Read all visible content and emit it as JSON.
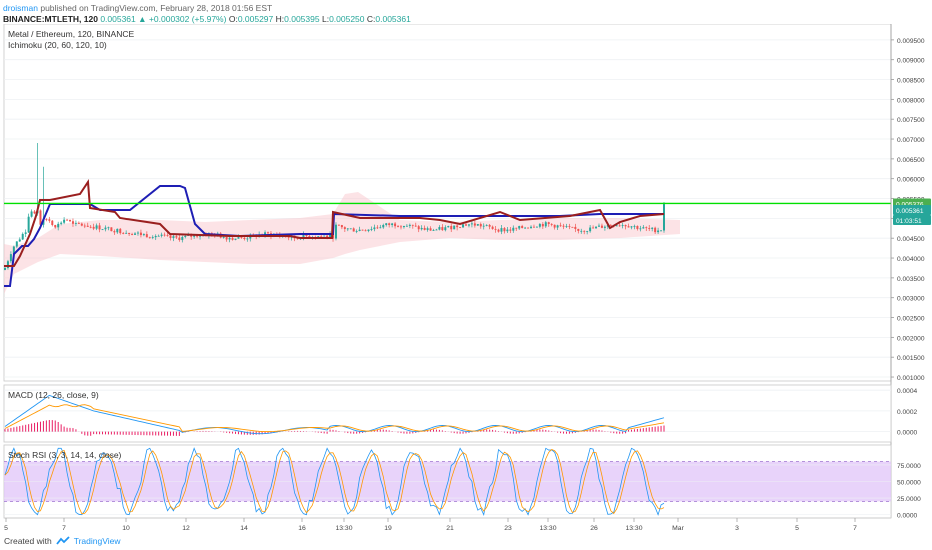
{
  "header": {
    "author": "droisman",
    "published_text": "published on TradingView.com, February 28, 2018 01:56 EST",
    "symbol": "BINANCE:MTLETH, 120",
    "last": "0.005361",
    "change": "+0.000302 (+5.97%)",
    "open_label": "O:",
    "open": "0.005297",
    "high_label": "H:",
    "high": "0.005395",
    "low_label": "L:",
    "low": "0.005250",
    "close_label": "C:",
    "close": "0.005361"
  },
  "footer": {
    "created_with": "Created with",
    "brand": "TradingView",
    "logo_icon": "tradingview-logo-icon"
  },
  "chart_data": [
    {
      "type": "candlestick",
      "title": "Metal / Ethereum, 120, BINANCE",
      "indicator": "Ichimoku (20, 60, 120, 10)",
      "ylim": [
        0.0009,
        0.0099
      ],
      "y_ticks": [
        "0.009500",
        "0.009000",
        "0.008500",
        "0.008000",
        "0.007500",
        "0.007000",
        "0.006500",
        "0.006000",
        "0.005500",
        "0.005000",
        "0.004500",
        "0.004000",
        "0.003500",
        "0.003000",
        "0.002500",
        "0.002000",
        "0.001500",
        "0.001000"
      ],
      "price_labels": [
        {
          "value": "0.005376",
          "color": "#4caf50"
        },
        {
          "value": "0.005361",
          "color": "#26a69a"
        },
        {
          "value": "01:03:51",
          "color": "#26a69a"
        }
      ],
      "horizontal_line": {
        "value": 0.005376,
        "color": "#00e000"
      },
      "colors": {
        "up": "#26a69a",
        "down": "#ef5350",
        "tenkan": "#1e1eb4",
        "kijun": "#9a1f1f",
        "cloud": "#f8c0c8"
      }
    },
    {
      "type": "line",
      "title": "MACD (12, 26, close, 9)",
      "ylim": [
        -0.0001,
        0.00045
      ],
      "y_ticks": [
        "0.0004",
        "0.0002",
        "0.0000"
      ],
      "colors": {
        "macd": "#2196f3",
        "signal": "#ff9800",
        "hist": "#e91e63"
      }
    },
    {
      "type": "line",
      "title": "Stoch RSI (3, 3, 14, 14, close)",
      "ylim": [
        -5,
        105
      ],
      "y_ticks": [
        "75.0000",
        "50.0000",
        "25.0000",
        "0.0000"
      ],
      "bands": [
        20,
        80
      ],
      "colors": {
        "k": "#2196f3",
        "d": "#ff9800",
        "band": "#e0c4f8"
      }
    }
  ],
  "x_axis": {
    "ticks": [
      "5",
      "7",
      "10",
      "12",
      "14",
      "16",
      "13:30",
      "19",
      "21",
      "23",
      "13:30",
      "26",
      "13:30",
      "Mar",
      "3",
      "5",
      "7"
    ]
  }
}
